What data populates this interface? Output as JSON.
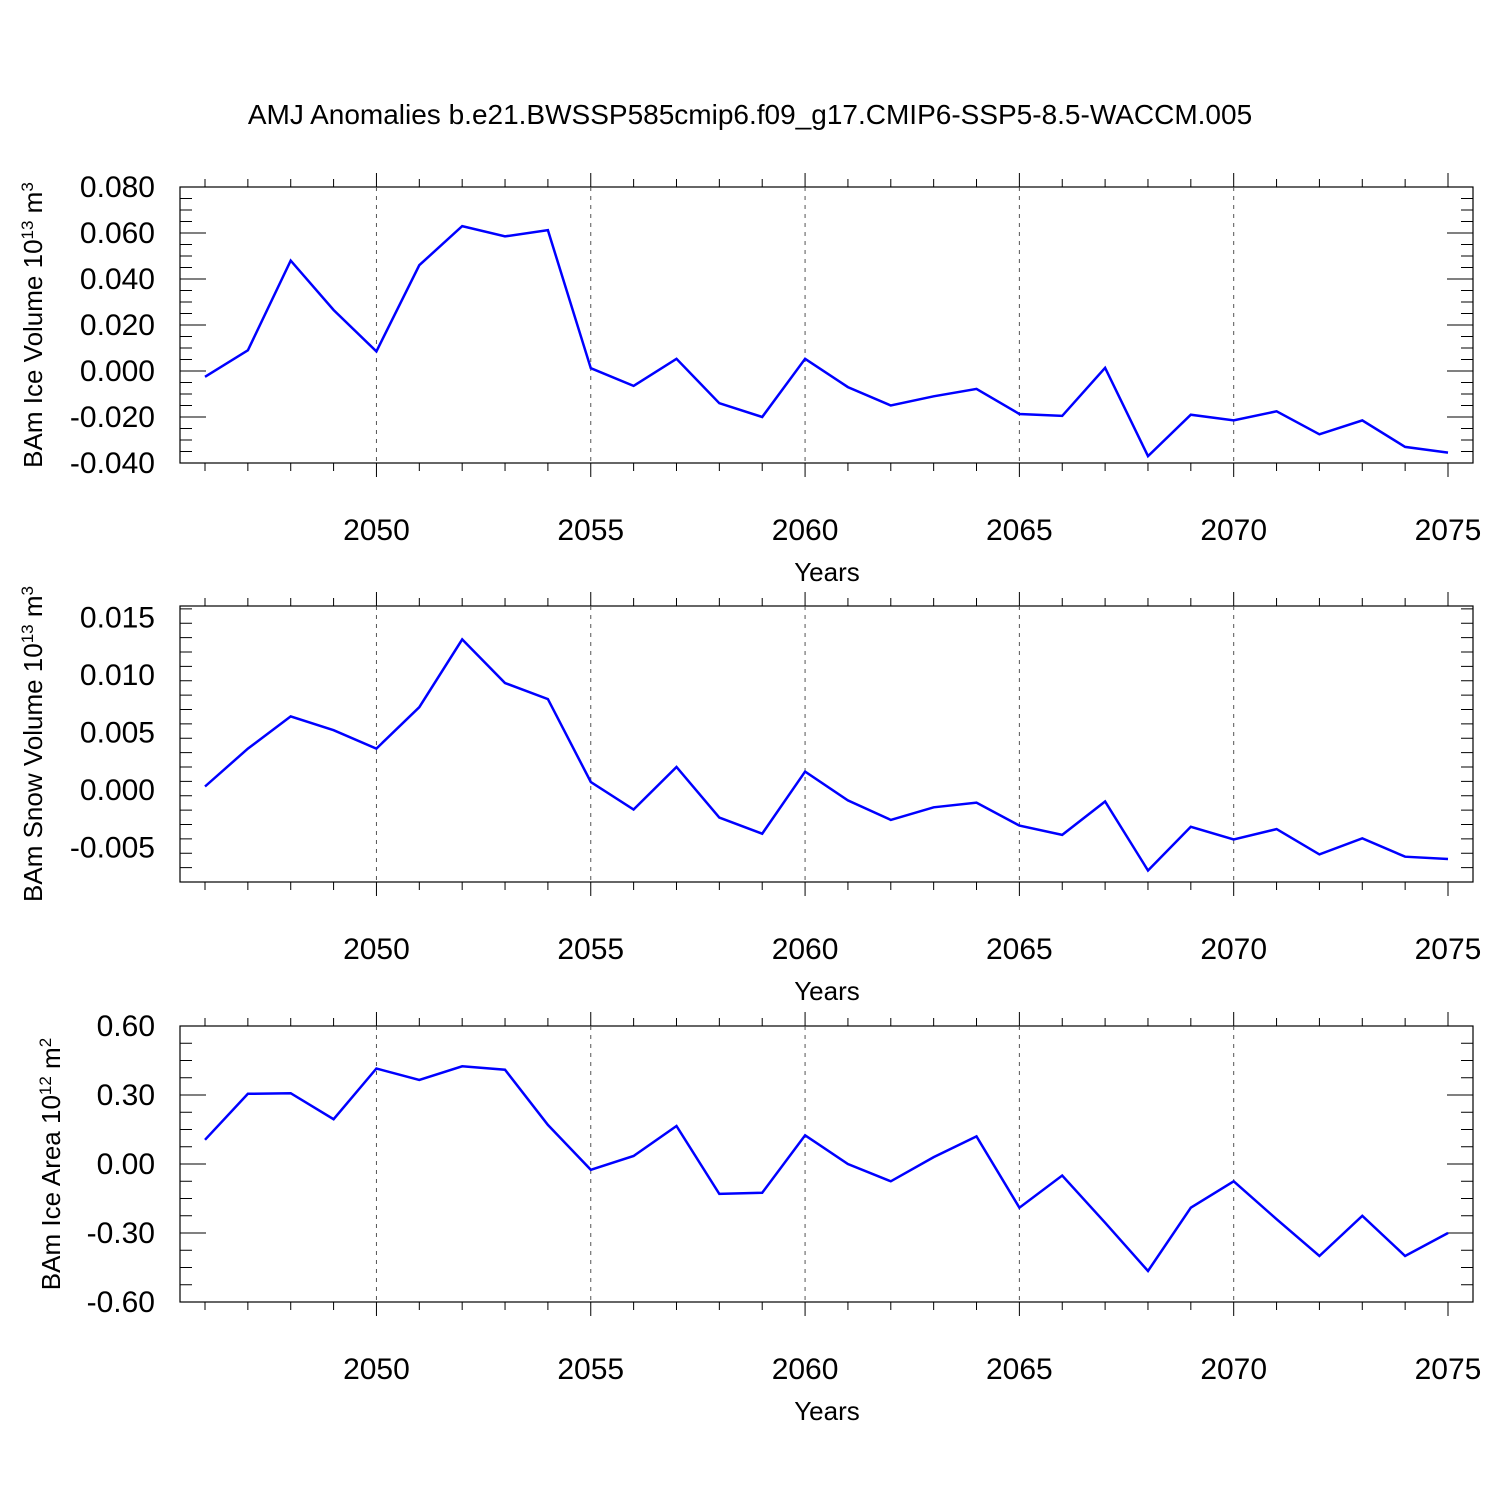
{
  "title": "AMJ Anomalies b.e21.BWSSP585cmip6.f09_g17.CMIP6-SSP5-8.5-WACCM.005",
  "colors": {
    "line": "#0000ff",
    "axis": "#000000",
    "grid": "#555555"
  },
  "chart_data": [
    {
      "type": "line",
      "ylabel": {
        "main": "BAm Ice Volume 10",
        "exp": "13",
        "unit": " m",
        "unit_exp": "3"
      },
      "xlabel": "Years",
      "xlim": [
        2046,
        2075
      ],
      "ylim": [
        -0.04,
        0.08
      ],
      "yticks": [
        -0.04,
        -0.02,
        0.0,
        0.02,
        0.04,
        0.06,
        0.08
      ],
      "ytick_labels": [
        "-0.040",
        "-0.020",
        "0.000",
        "0.020",
        "0.040",
        "0.060",
        "0.080"
      ],
      "xticks": [
        2050,
        2055,
        2060,
        2065,
        2070,
        2075
      ],
      "xtick_labels": [
        "2050",
        "2055",
        "2060",
        "2065",
        "2070",
        "2075"
      ],
      "x": [
        2046,
        2047,
        2048,
        2049,
        2050,
        2051,
        2052,
        2053,
        2054,
        2055,
        2056,
        2057,
        2058,
        2059,
        2060,
        2061,
        2062,
        2063,
        2064,
        2065,
        2066,
        2067,
        2068,
        2069,
        2070,
        2071,
        2072,
        2073,
        2074,
        2075
      ],
      "values": [
        -0.0025,
        0.009,
        0.048,
        0.0265,
        0.0085,
        0.046,
        0.063,
        0.0585,
        0.0612,
        0.0012,
        -0.0065,
        0.0053,
        -0.014,
        -0.02,
        0.0053,
        -0.007,
        -0.015,
        -0.011,
        -0.0078,
        -0.0187,
        -0.0195,
        0.0014,
        -0.037,
        -0.019,
        -0.0215,
        -0.0175,
        -0.0275,
        -0.0215,
        -0.033,
        -0.0355
      ]
    },
    {
      "type": "line",
      "ylabel": {
        "main": "BAm Snow Volume 10",
        "exp": "13",
        "unit": " m",
        "unit_exp": "3"
      },
      "xlabel": "Years",
      "xlim": [
        2046,
        2075
      ],
      "ylim": [
        -0.008,
        0.016
      ],
      "yticks": [
        -0.005,
        0.0,
        0.005,
        0.01,
        0.015
      ],
      "ytick_labels": [
        "-0.005",
        "0.000",
        "0.005",
        "0.010",
        "0.015"
      ],
      "xticks": [
        2050,
        2055,
        2060,
        2065,
        2070,
        2075
      ],
      "xtick_labels": [
        "2050",
        "2055",
        "2060",
        "2065",
        "2070",
        "2075"
      ],
      "x": [
        2046,
        2047,
        2048,
        2049,
        2050,
        2051,
        2052,
        2053,
        2054,
        2055,
        2056,
        2057,
        2058,
        2059,
        2060,
        2061,
        2062,
        2063,
        2064,
        2065,
        2066,
        2067,
        2068,
        2069,
        2070,
        2071,
        2072,
        2073,
        2074,
        2075
      ],
      "values": [
        0.0003,
        0.0036,
        0.0064,
        0.0052,
        0.0036,
        0.0072,
        0.0131,
        0.0093,
        0.0079,
        0.0007,
        -0.0017,
        0.002,
        -0.0024,
        -0.0038,
        0.0016,
        -0.0009,
        -0.0026,
        -0.0015,
        -0.0011,
        -0.0031,
        -0.0039,
        -0.001,
        -0.007,
        -0.0032,
        -0.0043,
        -0.0034,
        -0.0056,
        -0.0042,
        -0.0058,
        -0.006
      ]
    },
    {
      "type": "line",
      "ylabel": {
        "main": "BAm Ice Area 10",
        "exp": "12",
        "unit": " m",
        "unit_exp": "2"
      },
      "xlabel": "Years",
      "xlim": [
        2046,
        2075
      ],
      "ylim": [
        -0.6,
        0.6
      ],
      "yticks": [
        -0.6,
        -0.3,
        0.0,
        0.3,
        0.6
      ],
      "ytick_labels": [
        "-0.60",
        "-0.30",
        "0.00",
        "0.30",
        "0.60"
      ],
      "xticks": [
        2050,
        2055,
        2060,
        2065,
        2070,
        2075
      ],
      "xtick_labels": [
        "2050",
        "2055",
        "2060",
        "2065",
        "2070",
        "2075"
      ],
      "x": [
        2046,
        2047,
        2048,
        2049,
        2050,
        2051,
        2052,
        2053,
        2054,
        2055,
        2056,
        2057,
        2058,
        2059,
        2060,
        2061,
        2062,
        2063,
        2064,
        2065,
        2066,
        2067,
        2068,
        2069,
        2070,
        2071,
        2072,
        2073,
        2074,
        2075
      ],
      "values": [
        0.105,
        0.305,
        0.308,
        0.195,
        0.415,
        0.365,
        0.425,
        0.41,
        0.17,
        -0.025,
        0.035,
        0.165,
        -0.13,
        -0.125,
        0.125,
        0.0,
        -0.075,
        0.03,
        0.12,
        -0.19,
        -0.05,
        -0.255,
        -0.465,
        -0.19,
        -0.075,
        -0.24,
        -0.4,
        -0.225,
        -0.4,
        -0.3
      ]
    }
  ]
}
